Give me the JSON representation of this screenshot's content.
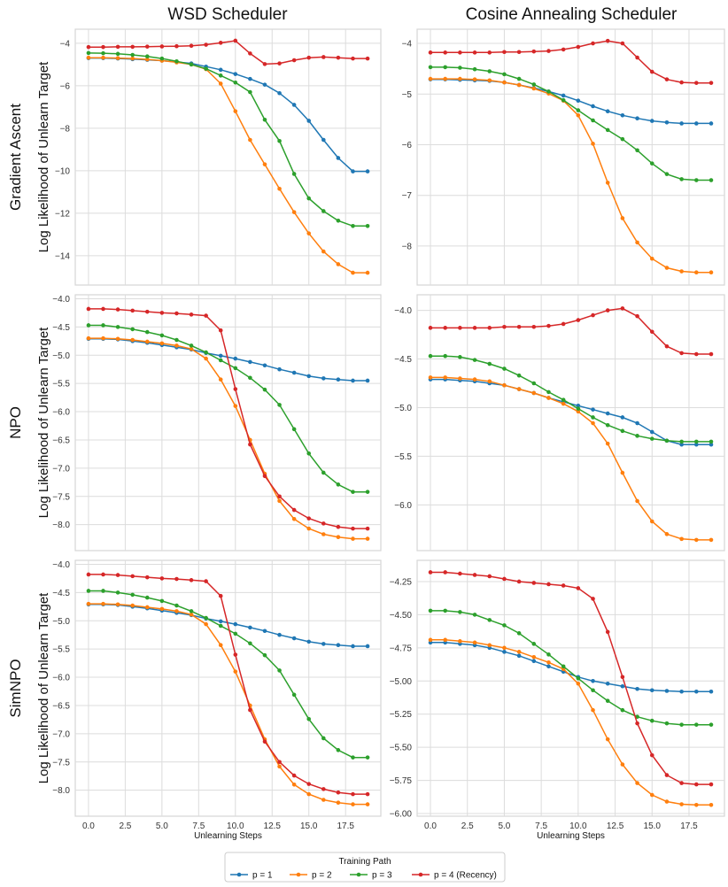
{
  "chart_data": {
    "type": "line",
    "column_titles": [
      "WSD Scheduler",
      "Cosine Annealing Scheduler"
    ],
    "row_labels": [
      "Gradient Ascent",
      "NPO",
      "SimNPO"
    ],
    "ylabel": "Log Likelihood of Unlearn Target",
    "xlabel": "Unlearning Steps",
    "x": [
      0,
      1,
      2,
      3,
      4,
      5,
      6,
      7,
      8,
      9,
      10,
      11,
      12,
      13,
      14,
      15,
      16,
      17,
      18,
      19
    ],
    "xlim": [
      -0.9,
      19.9
    ],
    "xticks": [
      0.0,
      2.5,
      5.0,
      7.5,
      10.0,
      12.5,
      15.0,
      17.5
    ],
    "xtick_labels": [
      "0.0",
      "2.5",
      "5.0",
      "7.5",
      "10.0",
      "12.5",
      "15.0",
      "17.5"
    ],
    "grid": true,
    "legend": {
      "title": "Training Path",
      "placement": "bottom-center",
      "entries": [
        "p = 1",
        "p = 2",
        "p = 3",
        "p = 4 (Recency)"
      ],
      "colors": [
        "#1f77b4",
        "#ff7f0e",
        "#2ca02c",
        "#d62728"
      ]
    },
    "panels": [
      {
        "row": 0,
        "col": 0,
        "ylim": [
          -15.38,
          -3.34
        ],
        "yticks": [
          -4,
          -6,
          -8,
          -10,
          -12,
          -14
        ],
        "ytick_labels": [
          "−4",
          "−6",
          "−8",
          "−10",
          "−12",
          "−14"
        ],
        "series": [
          {
            "name": "p = 1",
            "values": [
              -4.7,
              -4.7,
              -4.72,
              -4.75,
              -4.78,
              -4.82,
              -4.88,
              -4.95,
              -5.1,
              -5.25,
              -5.45,
              -5.68,
              -5.95,
              -6.35,
              -6.9,
              -7.65,
              -8.55,
              -9.4,
              -10.03,
              -10.03
            ]
          },
          {
            "name": "p = 2",
            "values": [
              -4.68,
              -4.68,
              -4.7,
              -4.72,
              -4.76,
              -4.82,
              -4.9,
              -5.0,
              -5.22,
              -5.9,
              -7.2,
              -8.55,
              -9.7,
              -10.85,
              -11.95,
              -12.95,
              -13.8,
              -14.4,
              -14.8,
              -14.8
            ]
          },
          {
            "name": "p = 3",
            "values": [
              -4.46,
              -4.47,
              -4.5,
              -4.55,
              -4.62,
              -4.72,
              -4.85,
              -5.0,
              -5.2,
              -5.52,
              -5.85,
              -6.3,
              -7.6,
              -8.6,
              -10.15,
              -11.3,
              -11.9,
              -12.35,
              -12.6,
              -12.6
            ]
          },
          {
            "name": "p = 4 (Recency)",
            "values": [
              -4.18,
              -4.18,
              -4.17,
              -4.17,
              -4.16,
              -4.15,
              -4.14,
              -4.12,
              -4.07,
              -3.98,
              -3.88,
              -4.48,
              -4.98,
              -4.95,
              -4.8,
              -4.68,
              -4.65,
              -4.68,
              -4.72,
              -4.72
            ]
          }
        ]
      },
      {
        "row": 0,
        "col": 1,
        "ylim": [
          -8.77,
          -3.72
        ],
        "yticks": [
          -4,
          -5,
          -6,
          -7,
          -8
        ],
        "ytick_labels": [
          "−4",
          "−5",
          "−6",
          "−7",
          "−8"
        ],
        "series": [
          {
            "name": "p = 1",
            "values": [
              -4.71,
              -4.71,
              -4.72,
              -4.73,
              -4.74,
              -4.77,
              -4.82,
              -4.88,
              -4.95,
              -5.03,
              -5.13,
              -5.24,
              -5.34,
              -5.42,
              -5.48,
              -5.53,
              -5.56,
              -5.58,
              -5.58,
              -5.58
            ]
          },
          {
            "name": "p = 2",
            "values": [
              -4.7,
              -4.7,
              -4.7,
              -4.71,
              -4.73,
              -4.77,
              -4.82,
              -4.89,
              -4.99,
              -5.13,
              -5.42,
              -5.98,
              -6.75,
              -7.45,
              -7.93,
              -8.25,
              -8.43,
              -8.5,
              -8.52,
              -8.52
            ]
          },
          {
            "name": "p = 3",
            "values": [
              -4.47,
              -4.47,
              -4.48,
              -4.51,
              -4.55,
              -4.61,
              -4.7,
              -4.81,
              -4.95,
              -5.12,
              -5.32,
              -5.52,
              -5.71,
              -5.89,
              -6.11,
              -6.37,
              -6.58,
              -6.68,
              -6.7,
              -6.7
            ]
          },
          {
            "name": "p = 4 (Recency)",
            "values": [
              -4.18,
              -4.18,
              -4.18,
              -4.18,
              -4.18,
              -4.17,
              -4.17,
              -4.16,
              -4.15,
              -4.12,
              -4.07,
              -4.0,
              -3.95,
              -4.0,
              -4.28,
              -4.56,
              -4.71,
              -4.77,
              -4.78,
              -4.78
            ]
          }
        ]
      },
      {
        "row": 1,
        "col": 0,
        "ylim": [
          -8.46,
          -3.93
        ],
        "yticks": [
          -4.0,
          -4.5,
          -5.0,
          -5.5,
          -6.0,
          -6.5,
          -7.0,
          -7.5,
          -8.0
        ],
        "ytick_labels": [
          "−4.0",
          "−4.5",
          "−5.0",
          "−5.5",
          "−6.0",
          "−6.5",
          "−7.0",
          "−7.5",
          "−8.0"
        ],
        "series": [
          {
            "name": "p = 1",
            "values": [
              -4.71,
              -4.71,
              -4.72,
              -4.75,
              -4.78,
              -4.82,
              -4.86,
              -4.9,
              -4.96,
              -5.01,
              -5.06,
              -5.12,
              -5.18,
              -5.25,
              -5.31,
              -5.37,
              -5.41,
              -5.43,
              -5.45,
              -5.45
            ]
          },
          {
            "name": "p = 2",
            "values": [
              -4.7,
              -4.7,
              -4.71,
              -4.73,
              -4.76,
              -4.79,
              -4.83,
              -4.89,
              -5.06,
              -5.43,
              -5.9,
              -6.5,
              -7.1,
              -7.58,
              -7.9,
              -8.07,
              -8.17,
              -8.22,
              -8.25,
              -8.25
            ]
          },
          {
            "name": "p = 3",
            "values": [
              -4.47,
              -4.47,
              -4.5,
              -4.54,
              -4.59,
              -4.65,
              -4.73,
              -4.83,
              -4.95,
              -5.09,
              -5.23,
              -5.4,
              -5.61,
              -5.88,
              -6.31,
              -6.74,
              -7.08,
              -7.29,
              -7.42,
              -7.42
            ]
          },
          {
            "name": "p = 4 (Recency)",
            "values": [
              -4.18,
              -4.18,
              -4.19,
              -4.21,
              -4.23,
              -4.25,
              -4.26,
              -4.28,
              -4.3,
              -4.56,
              -5.6,
              -6.58,
              -7.14,
              -7.5,
              -7.74,
              -7.89,
              -7.98,
              -8.04,
              -8.07,
              -8.07
            ]
          }
        ]
      },
      {
        "row": 1,
        "col": 1,
        "ylim": [
          -6.47,
          -3.84
        ],
        "yticks": [
          -4.0,
          -4.5,
          -5.0,
          -5.5,
          -6.0
        ],
        "ytick_labels": [
          "−4.0",
          "−4.5",
          "−5.0",
          "−5.5",
          "−6.0"
        ],
        "series": [
          {
            "name": "p = 1",
            "values": [
              -4.71,
              -4.71,
              -4.72,
              -4.73,
              -4.75,
              -4.77,
              -4.81,
              -4.85,
              -4.9,
              -4.94,
              -4.98,
              -5.02,
              -5.06,
              -5.1,
              -5.16,
              -5.25,
              -5.34,
              -5.38,
              -5.38,
              -5.38
            ]
          },
          {
            "name": "p = 2",
            "values": [
              -4.69,
              -4.69,
              -4.7,
              -4.71,
              -4.73,
              -4.77,
              -4.81,
              -4.85,
              -4.9,
              -4.96,
              -5.04,
              -5.16,
              -5.37,
              -5.67,
              -5.96,
              -6.17,
              -6.3,
              -6.35,
              -6.36,
              -6.36
            ]
          },
          {
            "name": "p = 3",
            "values": [
              -4.47,
              -4.47,
              -4.48,
              -4.51,
              -4.55,
              -4.6,
              -4.67,
              -4.75,
              -4.84,
              -4.92,
              -5.01,
              -5.1,
              -5.18,
              -5.24,
              -5.29,
              -5.32,
              -5.34,
              -5.35,
              -5.35,
              -5.35
            ]
          },
          {
            "name": "p = 4 (Recency)",
            "values": [
              -4.18,
              -4.18,
              -4.18,
              -4.18,
              -4.18,
              -4.17,
              -4.17,
              -4.17,
              -4.16,
              -4.14,
              -4.1,
              -4.05,
              -4.0,
              -3.98,
              -4.06,
              -4.22,
              -4.37,
              -4.44,
              -4.45,
              -4.45
            ]
          }
        ]
      },
      {
        "row": 2,
        "col": 0,
        "ylim": [
          -8.46,
          -3.93
        ],
        "yticks": [
          -4.0,
          -4.5,
          -5.0,
          -5.5,
          -6.0,
          -6.5,
          -7.0,
          -7.5,
          -8.0
        ],
        "ytick_labels": [
          "−4.0",
          "−4.5",
          "−5.0",
          "−5.5",
          "−6.0",
          "−6.5",
          "−7.0",
          "−7.5",
          "−8.0"
        ],
        "series": [
          {
            "name": "p = 1",
            "values": [
              -4.71,
              -4.71,
              -4.72,
              -4.75,
              -4.78,
              -4.82,
              -4.86,
              -4.9,
              -4.96,
              -5.01,
              -5.06,
              -5.12,
              -5.18,
              -5.25,
              -5.31,
              -5.37,
              -5.41,
              -5.43,
              -5.45,
              -5.45
            ]
          },
          {
            "name": "p = 2",
            "values": [
              -4.7,
              -4.7,
              -4.71,
              -4.73,
              -4.76,
              -4.79,
              -4.83,
              -4.89,
              -5.06,
              -5.43,
              -5.9,
              -6.5,
              -7.1,
              -7.58,
              -7.9,
              -8.07,
              -8.17,
              -8.22,
              -8.25,
              -8.25
            ]
          },
          {
            "name": "p = 3",
            "values": [
              -4.47,
              -4.47,
              -4.5,
              -4.54,
              -4.59,
              -4.65,
              -4.73,
              -4.83,
              -4.95,
              -5.09,
              -5.23,
              -5.4,
              -5.61,
              -5.88,
              -6.31,
              -6.74,
              -7.08,
              -7.29,
              -7.42,
              -7.42
            ]
          },
          {
            "name": "p = 4 (Recency)",
            "values": [
              -4.18,
              -4.18,
              -4.19,
              -4.21,
              -4.23,
              -4.25,
              -4.26,
              -4.28,
              -4.3,
              -4.56,
              -5.6,
              -6.58,
              -7.14,
              -7.5,
              -7.74,
              -7.89,
              -7.98,
              -8.04,
              -8.07,
              -8.07
            ]
          }
        ]
      },
      {
        "row": 2,
        "col": 1,
        "ylim": [
          -6.02,
          -4.09
        ],
        "yticks": [
          -4.25,
          -4.5,
          -4.75,
          -5.0,
          -5.25,
          -5.5,
          -5.75,
          -6.0
        ],
        "ytick_labels": [
          "−4.25",
          "−4.50",
          "−4.75",
          "−5.00",
          "−5.25",
          "−5.50",
          "−5.75",
          "−6.00"
        ],
        "series": [
          {
            "name": "p = 1",
            "values": [
              -4.71,
              -4.71,
              -4.72,
              -4.73,
              -4.75,
              -4.78,
              -4.81,
              -4.85,
              -4.89,
              -4.93,
              -4.97,
              -5.0,
              -5.02,
              -5.04,
              -5.06,
              -5.07,
              -5.075,
              -5.08,
              -5.08,
              -5.08
            ]
          },
          {
            "name": "p = 2",
            "values": [
              -4.69,
              -4.69,
              -4.7,
              -4.71,
              -4.73,
              -4.75,
              -4.78,
              -4.82,
              -4.86,
              -4.91,
              -5.02,
              -5.22,
              -5.44,
              -5.63,
              -5.77,
              -5.86,
              -5.91,
              -5.93,
              -5.935,
              -5.935
            ]
          },
          {
            "name": "p = 3",
            "values": [
              -4.47,
              -4.47,
              -4.48,
              -4.5,
              -4.54,
              -4.58,
              -4.64,
              -4.72,
              -4.8,
              -4.89,
              -4.98,
              -5.07,
              -5.15,
              -5.22,
              -5.27,
              -5.3,
              -5.32,
              -5.33,
              -5.33,
              -5.33
            ]
          },
          {
            "name": "p = 4 (Recency)",
            "values": [
              -4.18,
              -4.18,
              -4.19,
              -4.2,
              -4.21,
              -4.23,
              -4.25,
              -4.26,
              -4.27,
              -4.28,
              -4.3,
              -4.38,
              -4.63,
              -4.97,
              -5.32,
              -5.56,
              -5.71,
              -5.77,
              -5.78,
              -5.78
            ]
          }
        ]
      }
    ]
  }
}
